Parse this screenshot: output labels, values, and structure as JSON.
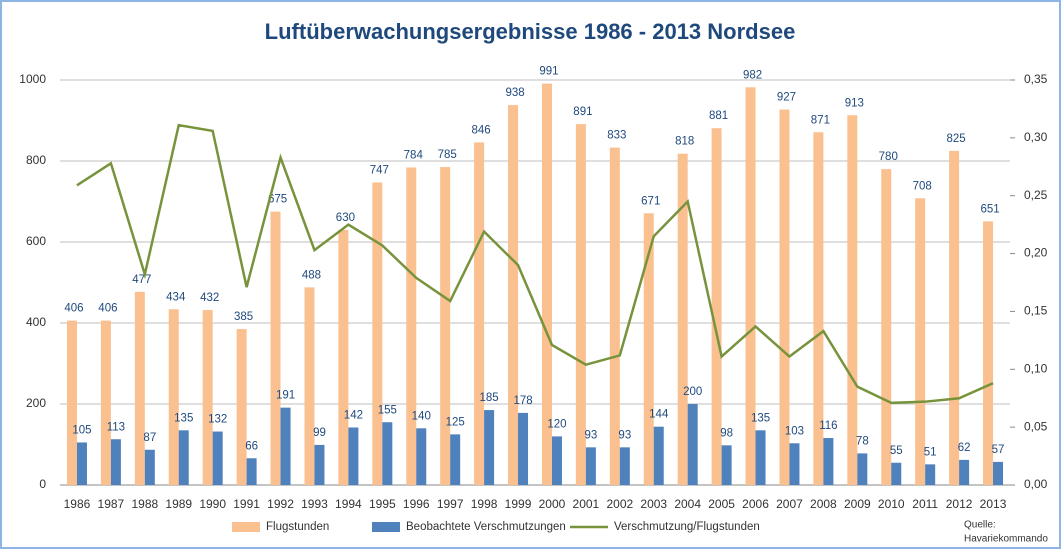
{
  "chart_data": {
    "type": "bar",
    "title": "Luftüberwachungsergebnisse 1986 - 2013 Nordsee",
    "categories": [
      "1986",
      "1987",
      "1988",
      "1989",
      "1990",
      "1991",
      "1992",
      "1993",
      "1994",
      "1995",
      "1996",
      "1997",
      "1998",
      "1999",
      "2000",
      "2001",
      "2002",
      "2003",
      "2004",
      "2005",
      "2006",
      "2007",
      "2008",
      "2009",
      "2010",
      "2011",
      "2012",
      "2013"
    ],
    "series": [
      {
        "name": "Flugstunden",
        "color": "#fac090",
        "type": "bar",
        "values": [
          406,
          406,
          477,
          434,
          432,
          385,
          675,
          488,
          630,
          747,
          784,
          785,
          846,
          938,
          991,
          891,
          833,
          671,
          818,
          881,
          982,
          927,
          871,
          913,
          780,
          708,
          825,
          651
        ]
      },
      {
        "name": "Beobachtete Verschmutzungen",
        "color": "#4f81bd",
        "type": "bar",
        "values": [
          105,
          113,
          87,
          135,
          132,
          66,
          191,
          99,
          142,
          155,
          140,
          125,
          185,
          178,
          120,
          93,
          93,
          144,
          200,
          98,
          135,
          103,
          116,
          78,
          55,
          51,
          62,
          57
        ]
      },
      {
        "name": "Verschmutzung/Flugstunden",
        "color": "#77933c",
        "type": "line",
        "axis": "y2",
        "values": [
          0.259,
          0.278,
          0.182,
          0.311,
          0.306,
          0.171,
          0.283,
          0.203,
          0.225,
          0.207,
          0.179,
          0.159,
          0.219,
          0.19,
          0.121,
          0.104,
          0.112,
          0.215,
          0.245,
          0.111,
          0.137,
          0.111,
          0.133,
          0.085,
          0.071,
          0.072,
          0.075,
          0.088
        ]
      }
    ],
    "ylim": [
      0,
      1000
    ],
    "yticks": [
      0,
      200,
      400,
      600,
      800,
      1000
    ],
    "y2lim": [
      0,
      0.35
    ],
    "y2ticks": [
      {
        "value": 0,
        "label": "0,00"
      },
      {
        "value": 0.05,
        "label": "0,05"
      },
      {
        "value": 0.1,
        "label": "0,10"
      },
      {
        "value": 0.15,
        "label": "0,15"
      },
      {
        "value": 0.2,
        "label": "0,20"
      },
      {
        "value": 0.25,
        "label": "0,25"
      },
      {
        "value": 0.3,
        "label": "0,30"
      },
      {
        "value": 0.35,
        "label": "0,35"
      }
    ],
    "grid": true,
    "legend": "bottom",
    "source": [
      "Quelle:",
      "Havariekommando"
    ]
  }
}
